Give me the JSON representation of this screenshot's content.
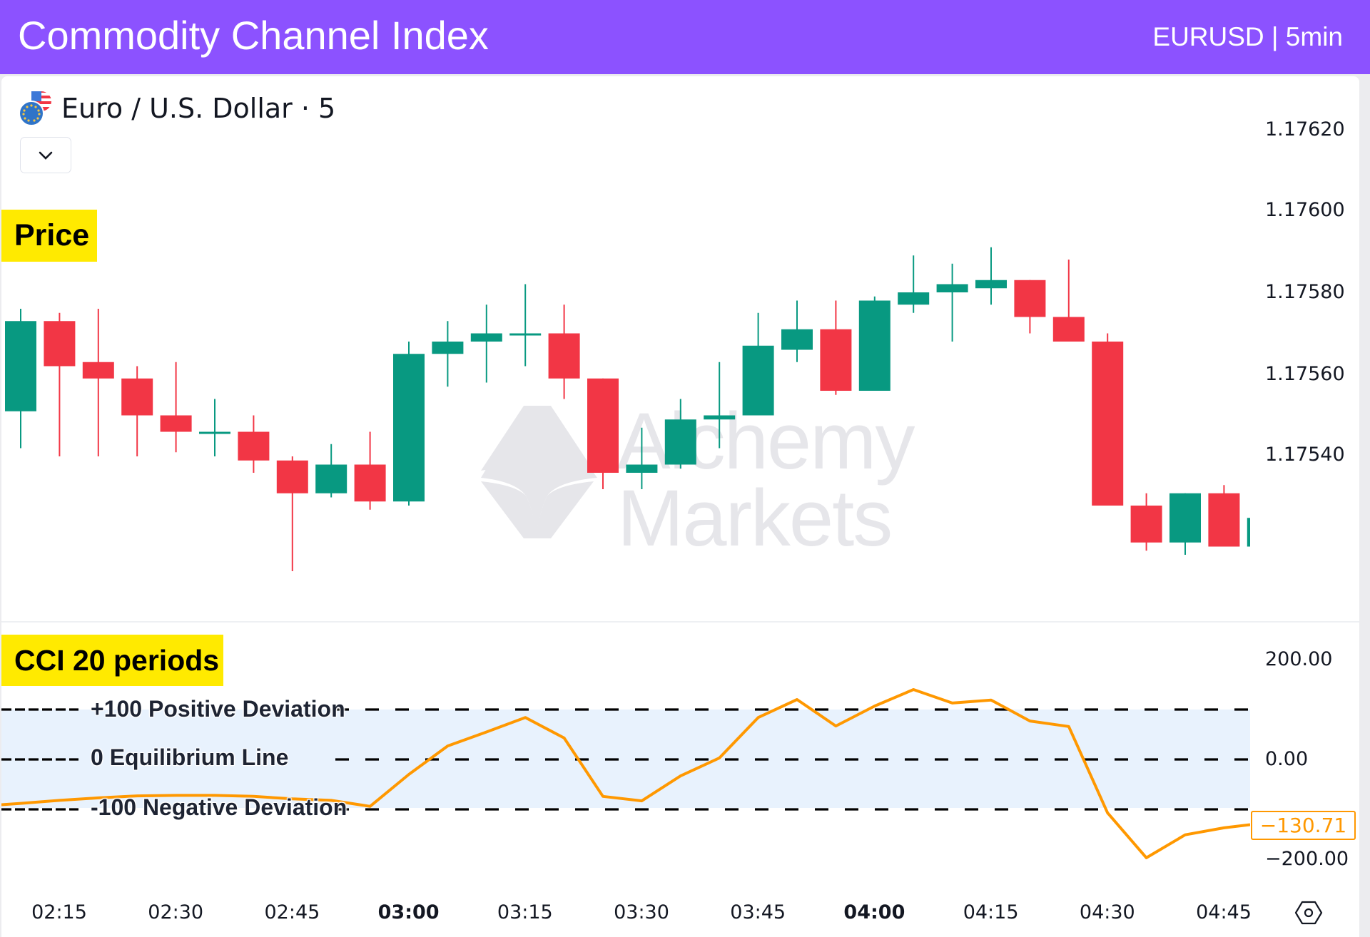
{
  "header": {
    "title": "Commodity Channel Index",
    "subtitle": "EURUSD | 5min"
  },
  "symbol": {
    "name": "Euro / U.S. Dollar · 5",
    "icon": "eur-usd-flag-icon",
    "dropdown_icon": "chevron-down-icon"
  },
  "annotations": {
    "price_tag": "Price",
    "cci_tag": "CCI 20 periods",
    "positive_deviation": "+100 Positive Deviation",
    "equilibrium": "0 Equilibrium Line",
    "negative_deviation": "-100 Negative Deviation"
  },
  "watermark": {
    "line1": "Alchemy",
    "line2": "Markets"
  },
  "price_axis": [
    "1.17620",
    "1.17600",
    "1.17580",
    "1.17560",
    "1.17540"
  ],
  "cci_axis": [
    "200.00",
    "0.00",
    "−200.00"
  ],
  "cci_last_value": "−130.71",
  "time_axis": [
    {
      "label": "02:15",
      "bold": false
    },
    {
      "label": "02:30",
      "bold": false
    },
    {
      "label": "02:45",
      "bold": false
    },
    {
      "label": "03:00",
      "bold": true
    },
    {
      "label": "03:15",
      "bold": false
    },
    {
      "label": "03:30",
      "bold": false
    },
    {
      "label": "03:45",
      "bold": false
    },
    {
      "label": "04:00",
      "bold": true
    },
    {
      "label": "04:15",
      "bold": false
    },
    {
      "label": "04:30",
      "bold": false
    },
    {
      "label": "04:45",
      "bold": false
    }
  ],
  "settings_icon": "gear-hexagon-icon",
  "colors": {
    "header_bg": "#8c52ff",
    "bull": "#089981",
    "bear": "#f23645",
    "cci_line": "#ff9800",
    "band": "#e8f2fd",
    "tag_bg": "#ffea00"
  },
  "chart_data": [
    {
      "type": "candlestick",
      "title": "Euro / U.S. Dollar · 5",
      "xlabel": "",
      "ylabel": "Price",
      "ylim": [
        1.1751,
        1.1763
      ],
      "y_ticks": [
        1.1754,
        1.1756,
        1.1758,
        1.176,
        1.1762
      ],
      "x_ticks": [
        "02:15",
        "02:30",
        "02:45",
        "03:00",
        "03:15",
        "03:30",
        "03:45",
        "04:00",
        "04:15",
        "04:30",
        "04:45"
      ],
      "candles": [
        {
          "o": 1.17551,
          "h": 1.17576,
          "l": 1.17542,
          "c": 1.17573
        },
        {
          "o": 1.17573,
          "h": 1.17575,
          "l": 1.1754,
          "c": 1.17562
        },
        {
          "o": 1.17563,
          "h": 1.17576,
          "l": 1.1754,
          "c": 1.17559
        },
        {
          "o": 1.17559,
          "h": 1.17562,
          "l": 1.1754,
          "c": 1.1755
        },
        {
          "o": 1.1755,
          "h": 1.17563,
          "l": 1.17541,
          "c": 1.17546
        },
        {
          "o": 1.17546,
          "h": 1.17554,
          "l": 1.1754,
          "c": 1.17546
        },
        {
          "o": 1.17546,
          "h": 1.1755,
          "l": 1.17536,
          "c": 1.17539
        },
        {
          "o": 1.17539,
          "h": 1.1754,
          "l": 1.17512,
          "c": 1.17531
        },
        {
          "o": 1.17531,
          "h": 1.17543,
          "l": 1.1753,
          "c": 1.17538
        },
        {
          "o": 1.17538,
          "h": 1.17546,
          "l": 1.17527,
          "c": 1.17529
        },
        {
          "o": 1.17529,
          "h": 1.17568,
          "l": 1.17528,
          "c": 1.17565
        },
        {
          "o": 1.17565,
          "h": 1.17573,
          "l": 1.17557,
          "c": 1.17568
        },
        {
          "o": 1.17568,
          "h": 1.17577,
          "l": 1.17558,
          "c": 1.1757
        },
        {
          "o": 1.1757,
          "h": 1.17582,
          "l": 1.17562,
          "c": 1.1757
        },
        {
          "o": 1.1757,
          "h": 1.17577,
          "l": 1.17554,
          "c": 1.17559
        },
        {
          "o": 1.17559,
          "h": 1.17559,
          "l": 1.17532,
          "c": 1.17536
        },
        {
          "o": 1.17536,
          "h": 1.17547,
          "l": 1.17532,
          "c": 1.17538
        },
        {
          "o": 1.17538,
          "h": 1.17554,
          "l": 1.17537,
          "c": 1.17549
        },
        {
          "o": 1.17549,
          "h": 1.17563,
          "l": 1.17542,
          "c": 1.1755
        },
        {
          "o": 1.1755,
          "h": 1.17575,
          "l": 1.1755,
          "c": 1.17567
        },
        {
          "o": 1.17566,
          "h": 1.17578,
          "l": 1.17563,
          "c": 1.17571
        },
        {
          "o": 1.17571,
          "h": 1.17578,
          "l": 1.17555,
          "c": 1.17556
        },
        {
          "o": 1.17556,
          "h": 1.17579,
          "l": 1.17556,
          "c": 1.17578
        },
        {
          "o": 1.17577,
          "h": 1.17589,
          "l": 1.17575,
          "c": 1.1758
        },
        {
          "o": 1.1758,
          "h": 1.17587,
          "l": 1.17568,
          "c": 1.17582
        },
        {
          "o": 1.17581,
          "h": 1.17591,
          "l": 1.17577,
          "c": 1.17583
        },
        {
          "o": 1.17583,
          "h": 1.17583,
          "l": 1.1757,
          "c": 1.17574
        },
        {
          "o": 1.17574,
          "h": 1.17588,
          "l": 1.17569,
          "c": 1.17568
        },
        {
          "o": 1.17568,
          "h": 1.1757,
          "l": 1.17528,
          "c": 1.17528
        },
        {
          "o": 1.17528,
          "h": 1.17531,
          "l": 1.17517,
          "c": 1.17519
        },
        {
          "o": 1.17519,
          "h": 1.17531,
          "l": 1.17516,
          "c": 1.17531
        },
        {
          "o": 1.17531,
          "h": 1.17533,
          "l": 1.17518,
          "c": 1.17518
        },
        {
          "o": 1.17518,
          "h": 1.17525,
          "l": 1.17518,
          "c": 1.17525
        }
      ]
    },
    {
      "type": "line",
      "title": "CCI 20 periods",
      "ylabel": "CCI",
      "ylim": [
        -230,
        230
      ],
      "y_ticks": [
        -200,
        0,
        200
      ],
      "reference_lines": [
        100,
        0,
        -100
      ],
      "shaded_band": [
        -100,
        100
      ],
      "series": [
        {
          "name": "CCI (20)",
          "values": [
            -88,
            -82,
            -77,
            -73,
            -72,
            -72,
            -74,
            -79,
            -82,
            -94,
            -30,
            27,
            55,
            84,
            43,
            -74,
            -83,
            -33,
            3,
            84,
            120,
            67,
            107,
            140,
            113,
            119,
            77,
            66,
            -107,
            -197,
            -151,
            -137,
            -130.71
          ]
        }
      ],
      "last_value": -130.71
    }
  ]
}
